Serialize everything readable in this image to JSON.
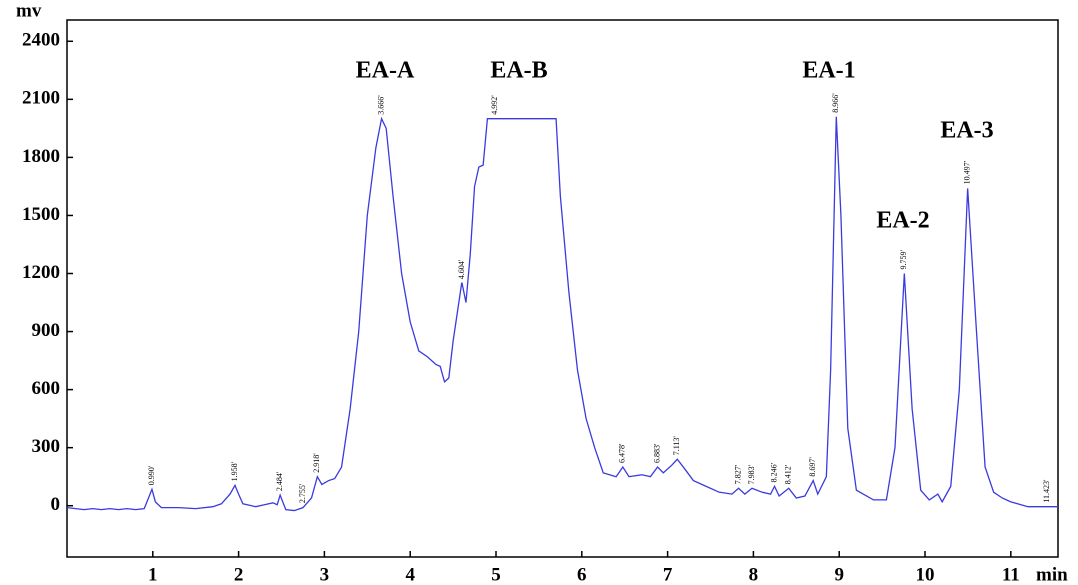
{
  "chart_data": {
    "type": "line",
    "x_label": "min",
    "y_label": "mv",
    "xlim": [
      0,
      11.55
    ],
    "ylim": [
      -265,
      2510
    ],
    "xticks": [
      1,
      2,
      3,
      4,
      5,
      6,
      7,
      8,
      9,
      10,
      11
    ],
    "yticks": [
      0,
      300,
      600,
      900,
      1200,
      1500,
      1800,
      2100,
      2400
    ],
    "grid": false,
    "color": "#3a3ae0",
    "x": [
      0.0,
      0.1,
      0.2,
      0.3,
      0.4,
      0.5,
      0.6,
      0.7,
      0.8,
      0.9,
      0.95,
      0.99,
      1.03,
      1.1,
      1.3,
      1.5,
      1.7,
      1.8,
      1.9,
      1.958,
      2.0,
      2.05,
      2.2,
      2.3,
      2.4,
      2.45,
      2.484,
      2.55,
      2.65,
      2.75,
      2.85,
      2.918,
      2.97,
      3.05,
      3.12,
      3.2,
      3.3,
      3.4,
      3.5,
      3.6,
      3.666,
      3.72,
      3.8,
      3.9,
      4.0,
      4.1,
      4.2,
      4.3,
      4.35,
      4.4,
      4.45,
      4.5,
      4.6,
      4.604,
      4.65,
      4.7,
      4.75,
      4.8,
      4.85,
      4.9,
      5.0,
      5.7,
      5.75,
      5.85,
      5.95,
      6.05,
      6.15,
      6.25,
      6.4,
      6.478,
      6.55,
      6.7,
      6.8,
      6.883,
      6.95,
      7.05,
      7.113,
      7.2,
      7.3,
      7.45,
      7.6,
      7.75,
      7.827,
      7.9,
      7.983,
      8.1,
      8.2,
      8.246,
      8.3,
      8.412,
      8.5,
      8.6,
      8.697,
      8.75,
      8.85,
      8.9,
      8.966,
      9.02,
      9.1,
      9.2,
      9.4,
      9.55,
      9.65,
      9.759,
      9.85,
      9.95,
      10.05,
      10.15,
      10.2,
      10.3,
      10.4,
      10.497,
      10.6,
      10.7,
      10.8,
      10.9,
      11.0,
      11.2,
      11.423,
      11.55
    ],
    "values": [
      -10,
      -15,
      -20,
      -15,
      -20,
      -15,
      -20,
      -15,
      -20,
      -15,
      40,
      85,
      20,
      -10,
      -10,
      -15,
      -5,
      10,
      60,
      105,
      60,
      10,
      -5,
      5,
      15,
      5,
      55,
      -20,
      -25,
      -10,
      40,
      150,
      110,
      130,
      140,
      200,
      500,
      900,
      1500,
      1850,
      2000,
      1950,
      1600,
      1200,
      950,
      800,
      770,
      730,
      720,
      640,
      660,
      850,
      1150,
      1150,
      1050,
      1300,
      1650,
      1750,
      1760,
      2000,
      2000,
      2000,
      1600,
      1100,
      700,
      450,
      300,
      170,
      150,
      200,
      150,
      160,
      150,
      200,
      170,
      210,
      240,
      190,
      130,
      100,
      70,
      60,
      90,
      60,
      90,
      70,
      60,
      100,
      50,
      90,
      40,
      50,
      130,
      60,
      150,
      700,
      2010,
      1500,
      400,
      80,
      30,
      30,
      300,
      1200,
      500,
      80,
      30,
      60,
      20,
      100,
      600,
      1640,
      900,
      200,
      70,
      40,
      20,
      -5,
      -5,
      -5
    ],
    "peak_names": [
      "EA-A",
      "EA-B",
      "EA-1",
      "EA-2",
      "EA-3"
    ],
    "retention_times": [
      {
        "value": 0.99,
        "label": "0.990'"
      },
      {
        "value": 1.958,
        "label": "1.958'"
      },
      {
        "value": 2.484,
        "label": "2.484'"
      },
      {
        "value": 2.755,
        "label": "2.755'"
      },
      {
        "value": 2.918,
        "label": "2.918'"
      },
      {
        "value": 3.666,
        "label": "3.666'"
      },
      {
        "value": 4.604,
        "label": "4.604'"
      },
      {
        "value": 4.992,
        "label": "4.992'"
      },
      {
        "value": 6.478,
        "label": "6.478'"
      },
      {
        "value": 6.883,
        "label": "6.883'"
      },
      {
        "value": 7.113,
        "label": "7.113'"
      },
      {
        "value": 7.827,
        "label": "7.827'"
      },
      {
        "value": 7.983,
        "label": "7.983'"
      },
      {
        "value": 8.246,
        "label": "8.246'"
      },
      {
        "value": 8.412,
        "label": "8.412'"
      },
      {
        "value": 8.697,
        "label": "8.697'"
      },
      {
        "value": 8.966,
        "label": "8.966'"
      },
      {
        "value": 9.759,
        "label": "9.759'"
      },
      {
        "value": 10.497,
        "label": "10.497'"
      },
      {
        "value": 11.423,
        "label": "11.423'"
      }
    ]
  }
}
